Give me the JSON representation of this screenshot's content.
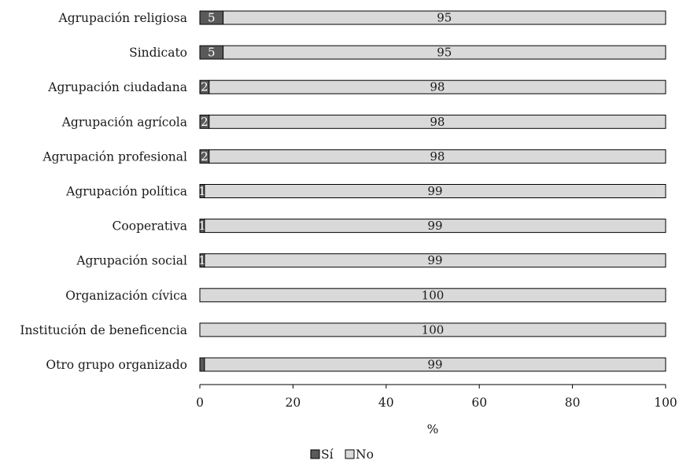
{
  "colors": {
    "si": "#595959",
    "no": "#d9d9d9",
    "stroke": "#000000",
    "label_on_dark": "#ffffff",
    "label_on_light": "#1a1a1a"
  },
  "chart_data": {
    "type": "bar",
    "orientation": "horizontal",
    "stacked": true,
    "categories": [
      "Agrupación religiosa",
      "Sindicato",
      "Agrupación ciudadana",
      "Agrupación agrícola",
      "Agrupación profesional",
      "Agrupación política",
      "Cooperativa",
      "Agrupación social",
      "Organización cívica",
      "Institución de beneficencia",
      "Otro grupo organizado"
    ],
    "series": [
      {
        "name": "Sí",
        "values": [
          5,
          5,
          2,
          2,
          2,
          1,
          1,
          1,
          0,
          0,
          1
        ],
        "labels": [
          "5",
          "5",
          "2",
          "2",
          "2",
          "1",
          "1",
          "1",
          "",
          "",
          ""
        ]
      },
      {
        "name": "No",
        "values": [
          95,
          95,
          98,
          98,
          98,
          99,
          99,
          99,
          100,
          100,
          99
        ],
        "labels": [
          "95",
          "95",
          "98",
          "98",
          "98",
          "99",
          "99",
          "99",
          "100",
          "100",
          "99"
        ]
      }
    ],
    "xlabel": "%",
    "ylabel": "",
    "xlim": [
      0,
      100
    ],
    "xticks": [
      "0",
      "20",
      "40",
      "60",
      "80",
      "100"
    ],
    "grid": false,
    "legend_position": "bottom-center"
  }
}
